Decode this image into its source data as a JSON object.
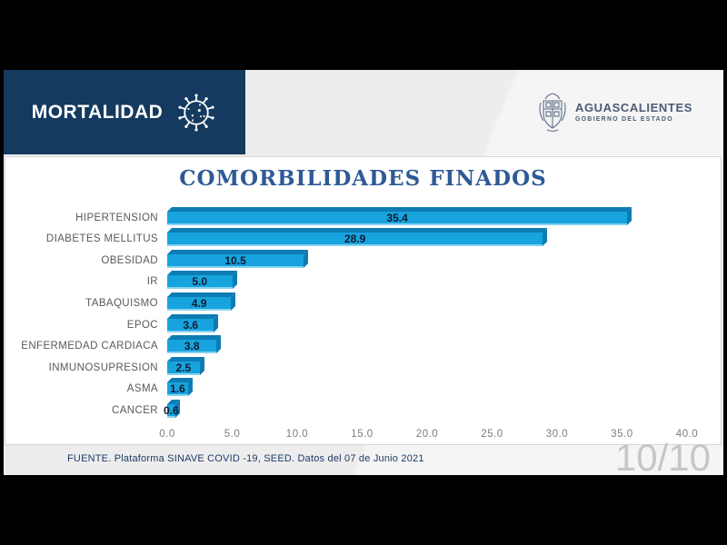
{
  "header": {
    "banner_label": "MORTALIDAD",
    "banner_bg": "#143a5f"
  },
  "logo": {
    "name": "AGUASCALIENTES",
    "subtitle": "GOBIERNO DEL ESTADO"
  },
  "chart_data": {
    "type": "bar",
    "orientation": "horizontal",
    "title": "COMORBILIDADES FINADOS",
    "title_color": "#2e5a96",
    "categories": [
      "HIPERTENSION",
      "DIABETES MELLITUS",
      "OBESIDAD",
      "IR",
      "TABAQUISMO",
      "EPOC",
      "ENFERMEDAD CARDIACA",
      "INMUNOSUPRESION",
      "ASMA",
      "CANCER"
    ],
    "values": [
      35.4,
      28.9,
      10.5,
      5.0,
      4.9,
      3.6,
      3.8,
      2.5,
      1.6,
      0.6
    ],
    "xlim": [
      0,
      40
    ],
    "x_ticks": [
      "0.0",
      "5.0",
      "10.0",
      "15.0",
      "20.0",
      "25.0",
      "30.0",
      "35.0",
      "40.0"
    ],
    "grid": false,
    "legend": false,
    "bar_color": "#17a3de",
    "bar_shade_color": "#0c7cb3",
    "value_label_color": "#111b2e"
  },
  "footer": {
    "source": "FUENTE. Plataforma SINAVE COVID -19, SEED. Datos del 07 de Junio 2021"
  },
  "page_indicator": "10/10"
}
